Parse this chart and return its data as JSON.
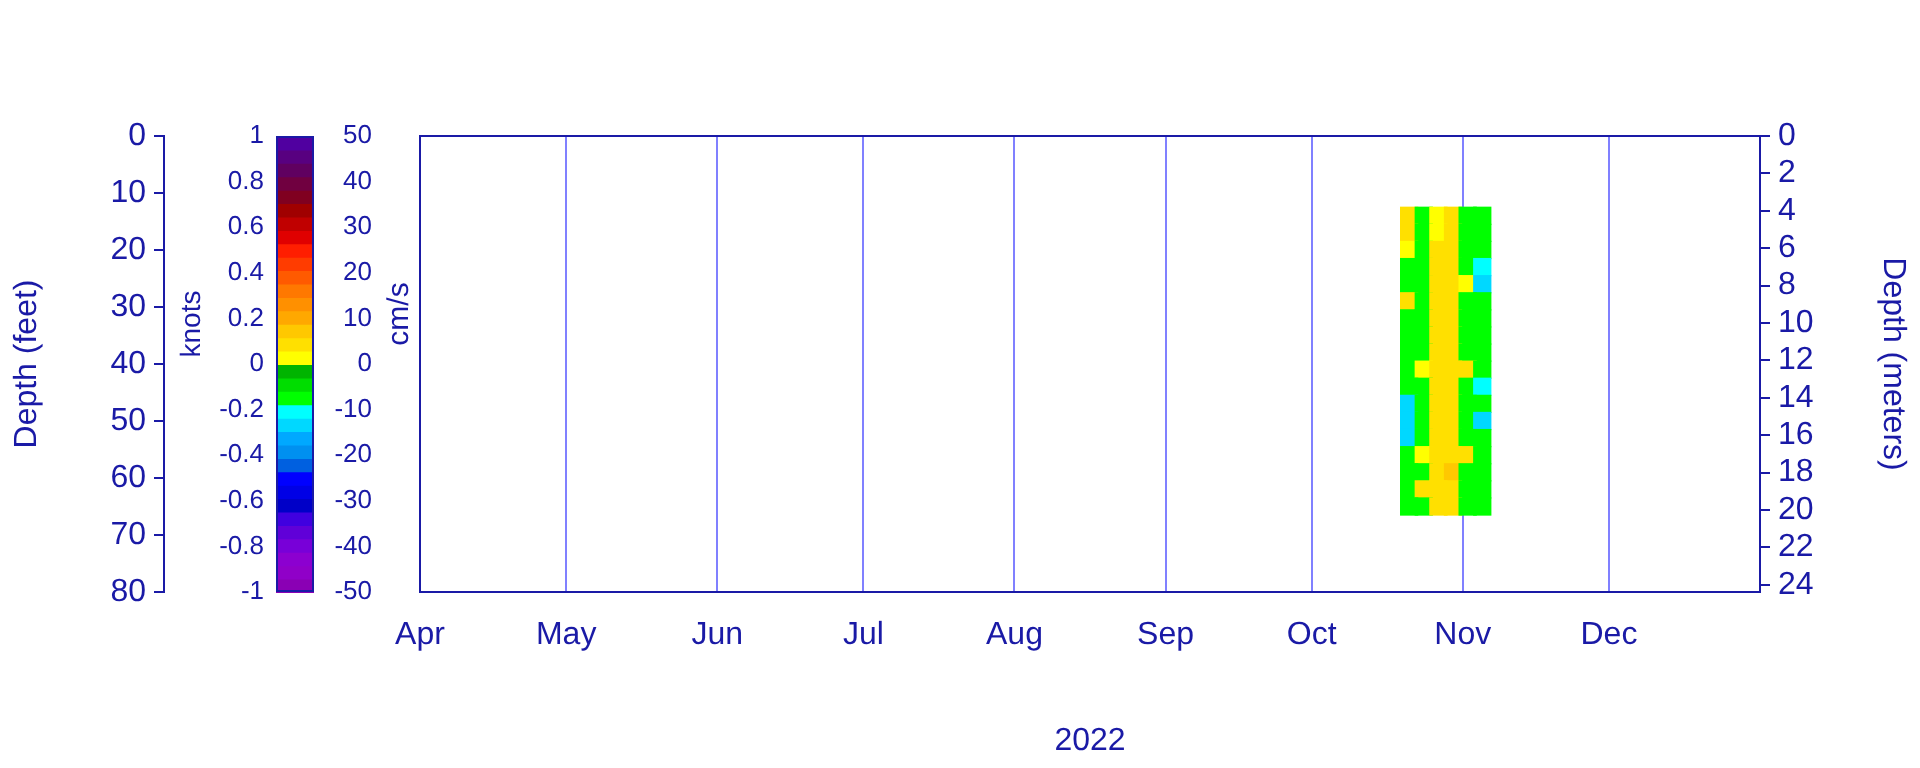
{
  "chart_data": {
    "type": "scatter",
    "xlabel": "2022",
    "ylabel": "Depth (feet)",
    "y2label": "Depth (meters)",
    "clabel": "cm/s",
    "annotations": [
      "knots",
      "1",
      "0.8",
      "0.6",
      "0.4",
      "0.2",
      "0",
      "-0.2",
      "-0.4",
      "-0.6",
      "-0.8",
      "-1"
    ],
    "series": [
      {
        "type": "scatter",
        "x": [
          "2022-10-21",
          "2022-10-24",
          "2022-10-27",
          "2022-10-30",
          "2022-11-02",
          "2022-11-05",
          "2022-10-21",
          "2022-10-24",
          "2022-10-27",
          "2022-10-30",
          "2022-11-02",
          "2022-11-05",
          "2022-10-21",
          "2022-10-24",
          "2022-10-27",
          "2022-10-30",
          "2022-11-02",
          "2022-11-05",
          "2022-10-21",
          "2022-10-24",
          "2022-10-27",
          "2022-10-30",
          "2022-11-02",
          "2022-11-05",
          "2022-10-21",
          "2022-10-24",
          "2022-10-27",
          "2022-10-30",
          "2022-11-02",
          "2022-11-05",
          "2022-10-21",
          "2022-10-24",
          "2022-10-27",
          "2022-10-30",
          "2022-11-02",
          "2022-11-05",
          "2022-10-21",
          "2022-10-24",
          "2022-10-27",
          "2022-10-30",
          "2022-11-02",
          "2022-11-05",
          "2022-10-21",
          "2022-10-24",
          "2022-10-27",
          "2022-10-30",
          "2022-11-02",
          "2022-11-05",
          "2022-10-21",
          "2022-10-24",
          "2022-10-27",
          "2022-10-30",
          "2022-11-02",
          "2022-11-05",
          "2022-10-21",
          "2022-10-24",
          "2022-10-27",
          "2022-10-30",
          "2022-11-02",
          "2022-11-05",
          "2022-10-21",
          "2022-10-24",
          "2022-10-27",
          "2022-10-30",
          "2022-11-02",
          "2022-11-05",
          "2022-10-21",
          "2022-10-24",
          "2022-10-27",
          "2022-10-30",
          "2022-11-02",
          "2022-11-05",
          "2022-10-21",
          "2022-10-24",
          "2022-10-27",
          "2022-10-30",
          "2022-11-02",
          "2022-11-05",
          "2022-10-21",
          "2022-10-24",
          "2022-10-27",
          "2022-10-30",
          "2022-11-02",
          "2022-11-05",
          "2022-10-21",
          "2022-10-24",
          "2022-10-27",
          "2022-10-30",
          "2022-11-02",
          "2022-11-05",
          "2022-10-21",
          "2022-10-24",
          "2022-10-27",
          "2022-10-30",
          "2022-11-02",
          "2022-11-05",
          "2022-10-21",
          "2022-10-24",
          "2022-10-27",
          "2022-10-30",
          "2022-11-02",
          "2022-11-05",
          "2022-10-21",
          "2022-10-24",
          "2022-10-27",
          "2022-10-30",
          "2022-11-02",
          "2022-11-05"
        ],
        "values": [
          14,
          14,
          14,
          14,
          14,
          14,
          17,
          17,
          17,
          17,
          17,
          17,
          20,
          20,
          20,
          20,
          20,
          20,
          23,
          23,
          23,
          23,
          23,
          23,
          26,
          26,
          26,
          26,
          26,
          26,
          29,
          29,
          29,
          29,
          29,
          29,
          32,
          32,
          32,
          32,
          32,
          32,
          35,
          35,
          35,
          35,
          35,
          35,
          38,
          38,
          38,
          38,
          38,
          38,
          41,
          41,
          41,
          41,
          41,
          41,
          44,
          44,
          44,
          44,
          44,
          44,
          47,
          47,
          47,
          47,
          47,
          47,
          50,
          50,
          50,
          50,
          50,
          50,
          53,
          53,
          53,
          53,
          53,
          53,
          56,
          56,
          56,
          56,
          56,
          56,
          59,
          59,
          59,
          59,
          59,
          59,
          62,
          62,
          62,
          62,
          62,
          62,
          65,
          65,
          65,
          65,
          65,
          65
        ],
        "cvalues": [
          4,
          -7,
          2,
          3,
          -7,
          -8,
          3,
          -7,
          2,
          3,
          -7,
          -8,
          2,
          -6,
          3,
          4,
          -6,
          -8,
          -6,
          -7,
          3,
          4,
          -7,
          -9,
          -7,
          -6,
          3,
          4,
          2,
          -12,
          3,
          -6,
          4,
          3,
          -6,
          -8,
          -6,
          -7,
          3,
          4,
          -7,
          -8,
          -7,
          -6,
          4,
          5,
          -7,
          -7,
          -6,
          -7,
          5,
          5,
          -6,
          -8,
          -7,
          2,
          5,
          5,
          3,
          -7,
          -6,
          -6,
          4,
          4,
          -7,
          -9,
          -12,
          -7,
          4,
          5,
          -6,
          -8,
          -14,
          -6,
          4,
          4,
          -7,
          -12,
          -13,
          -7,
          3,
          4,
          -6,
          -8,
          -7,
          2,
          3,
          5,
          3,
          -7,
          -6,
          -6,
          4,
          6,
          -6,
          -8,
          -7,
          3,
          5,
          4,
          -7,
          -8,
          -7,
          -6,
          3,
          3,
          -6,
          -7
        ]
      }
    ],
    "marker": "square",
    "clim": [
      -50,
      50
    ],
    "cticks": [
      -50,
      -40,
      -30,
      -20,
      -10,
      0,
      10,
      20,
      30,
      40,
      50
    ],
    "xlim": [
      "2022-04-01",
      "2023-01-01"
    ],
    "xticks": [
      {
        "value": "2022-04-01",
        "label": "Apr"
      },
      {
        "value": "2022-05-01",
        "label": "May"
      },
      {
        "value": "2022-06-01",
        "label": "Jun"
      },
      {
        "value": "2022-07-01",
        "label": "Jul"
      },
      {
        "value": "2022-08-01",
        "label": "Aug"
      },
      {
        "value": "2022-09-01",
        "label": "Sep"
      },
      {
        "value": "2022-10-01",
        "label": "Oct"
      },
      {
        "value": "2022-11-01",
        "label": "Nov"
      },
      {
        "value": "2022-12-01",
        "label": "Dec"
      }
    ],
    "ylim": [
      80,
      0
    ],
    "yticks": [
      0,
      10,
      20,
      30,
      40,
      50,
      60,
      70,
      80
    ],
    "y2lim": [
      24.384,
      0
    ],
    "y2ticks": [
      0,
      2,
      4,
      6,
      8,
      10,
      12,
      14,
      16,
      18,
      20,
      22,
      24
    ],
    "grid": "x",
    "legend": false
  }
}
